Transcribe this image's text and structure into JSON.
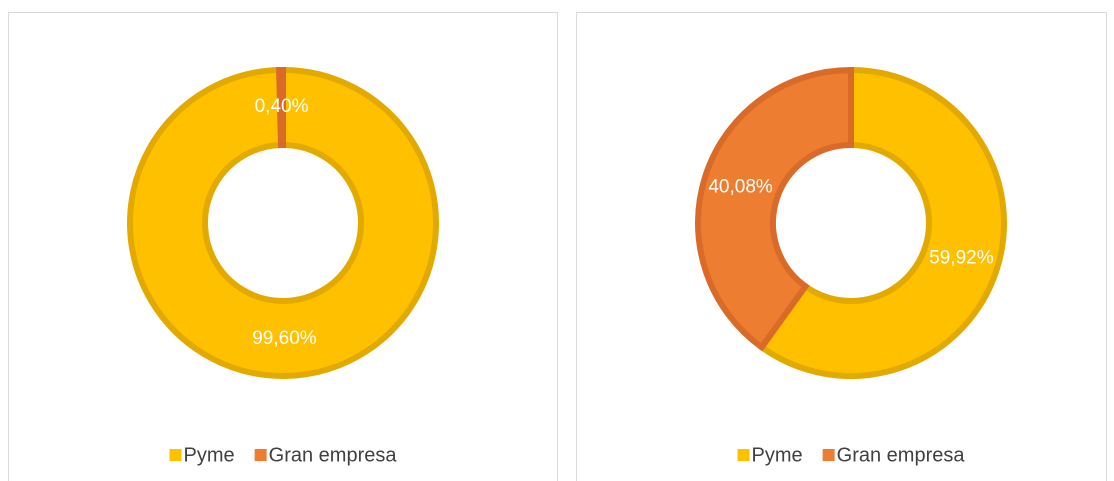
{
  "chart_data": [
    {
      "type": "donut",
      "categories": [
        "Pyme",
        "Gran empresa"
      ],
      "values": [
        99.6,
        0.4
      ],
      "value_labels": [
        "99,60%",
        "0,40%"
      ],
      "colors": [
        "#ffc000",
        "#ed7d31"
      ],
      "edge_colors": [
        "#e2aa00",
        "#d96a27"
      ]
    },
    {
      "type": "donut",
      "categories": [
        "Pyme",
        "Gran empresa"
      ],
      "values": [
        59.92,
        40.08
      ],
      "value_labels": [
        "59,92%",
        "40,08%"
      ],
      "colors": [
        "#ffc000",
        "#ed7d31"
      ],
      "edge_colors": [
        "#e2aa00",
        "#d96a27"
      ]
    }
  ]
}
